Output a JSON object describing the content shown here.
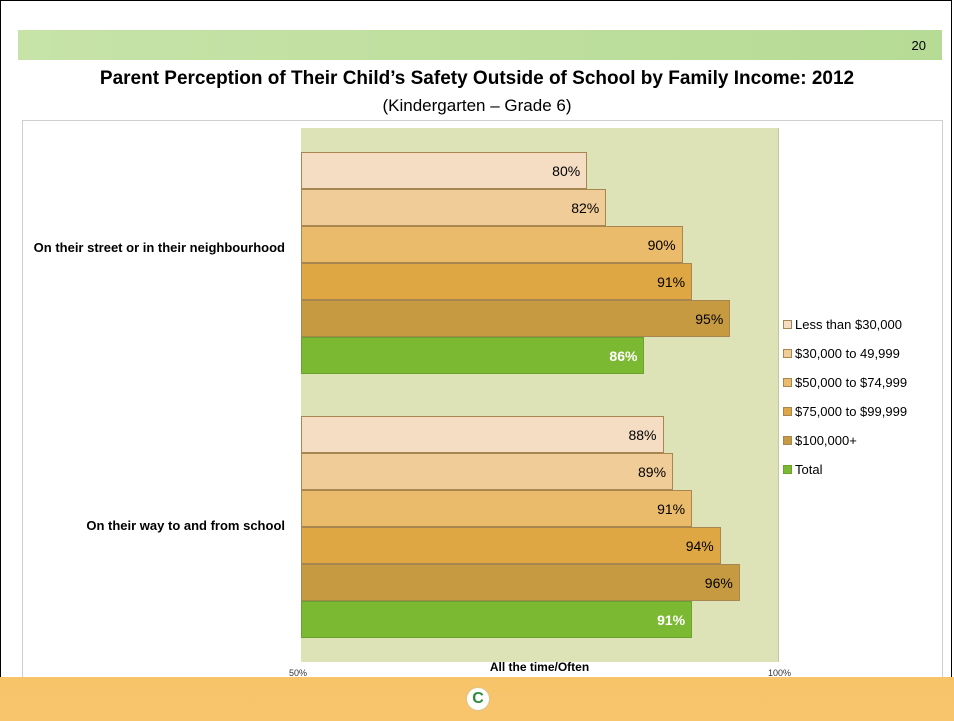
{
  "slide": {
    "page_number": "20",
    "title": "Parent Perception of Their Child’s Safety Outside of School by Family Income: 2012",
    "subtitle": "(Kindergarten – Grade 6)"
  },
  "logo": {
    "icon": "tdsb-logo-icon",
    "glyph": "C"
  },
  "colors": {
    "less_than_30000": "#f4ddc3",
    "30000_to_49999": "#f0cc98",
    "50000_to_74999": "#ebbb6c",
    "75000_to_99999": "#dfa744",
    "100000_plus": "#c69a41",
    "total": "#7cb933",
    "plot_background": "#dde3b7",
    "top_band": "#bfe0a0",
    "bottom_band": "#f7c46a"
  },
  "chart_data": {
    "type": "bar",
    "orientation": "horizontal",
    "categories": [
      "On their street or in their neighbourhood",
      "On their way to and from school"
    ],
    "series": [
      {
        "name": "Less than $30,000",
        "values": [
          80,
          88
        ],
        "labels": [
          "80%",
          "88%"
        ],
        "color": "#f4ddc3"
      },
      {
        "name": "$30,000 to 49,999",
        "values": [
          82,
          89
        ],
        "labels": [
          "82%",
          "89%"
        ],
        "color": "#f0cc98"
      },
      {
        "name": "$50,000 to $74,999",
        "values": [
          90,
          91
        ],
        "labels": [
          "90%",
          "91%"
        ],
        "color": "#ebbb6c"
      },
      {
        "name": "$75,000 to $99,999",
        "values": [
          91,
          94
        ],
        "labels": [
          "91%",
          "94%"
        ],
        "color": "#dfa744"
      },
      {
        "name": "$100,000+",
        "values": [
          95,
          96
        ],
        "labels": [
          "95%",
          "96%"
        ],
        "color": "#c69a41"
      },
      {
        "name": "Total",
        "values": [
          86,
          91
        ],
        "labels": [
          "86%",
          "91%"
        ],
        "color": "#7cb933"
      }
    ],
    "xlabel": "All the time/Often",
    "xlim": [
      50,
      100
    ],
    "xticks": [
      "50%",
      "100%"
    ],
    "legend_position": "right",
    "grid": false
  }
}
